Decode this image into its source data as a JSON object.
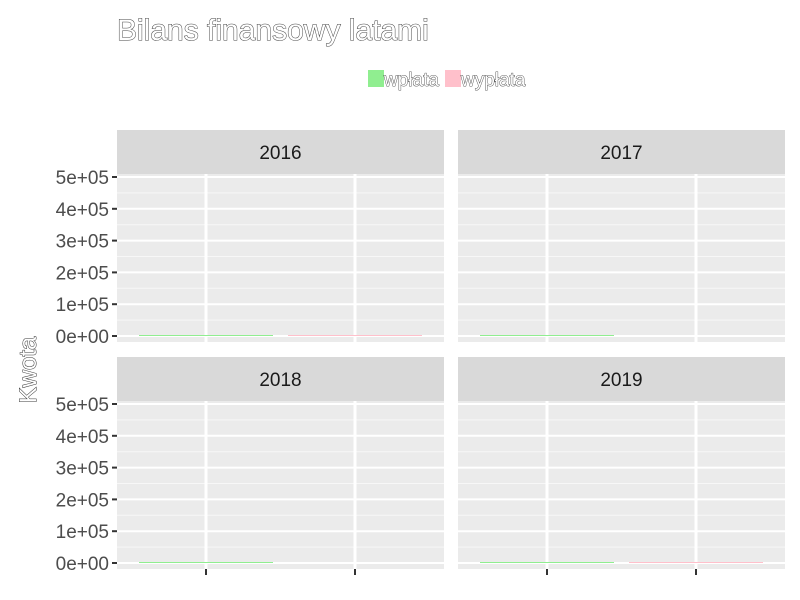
{
  "chart_data": {
    "type": "bar",
    "title": "Bilans finansowy latami",
    "xlabel": "",
    "ylabel": "Kwota",
    "legend": {
      "position": "top-center",
      "entries": [
        {
          "label": "wpłata",
          "color": "#90ee90"
        },
        {
          "label": "wypłata",
          "color": "#ffc0cb"
        }
      ]
    },
    "ylim": [
      0,
      500000
    ],
    "y_ticks": [
      "0e+00",
      "1e+05",
      "2e+05",
      "3e+05",
      "4e+05",
      "5e+05"
    ],
    "y_tick_values": [
      0,
      100000,
      200000,
      300000,
      400000,
      500000
    ],
    "grid": true,
    "facets": [
      {
        "label": "2016",
        "values": [
          {
            "series": "wpłata",
            "value": 1000
          },
          {
            "series": "wypłata",
            "value": 1000
          }
        ]
      },
      {
        "label": "2017",
        "values": [
          {
            "series": "wpłata",
            "value": 1000
          },
          {
            "series": "wypłata",
            "value": 0
          }
        ]
      },
      {
        "label": "2018",
        "values": [
          {
            "series": "wpłata",
            "value": 1000
          },
          {
            "series": "wypłata",
            "value": 0
          }
        ]
      },
      {
        "label": "2019",
        "values": [
          {
            "series": "wpłata",
            "value": 1000
          },
          {
            "series": "wypłata",
            "value": 1000
          }
        ]
      }
    ]
  }
}
